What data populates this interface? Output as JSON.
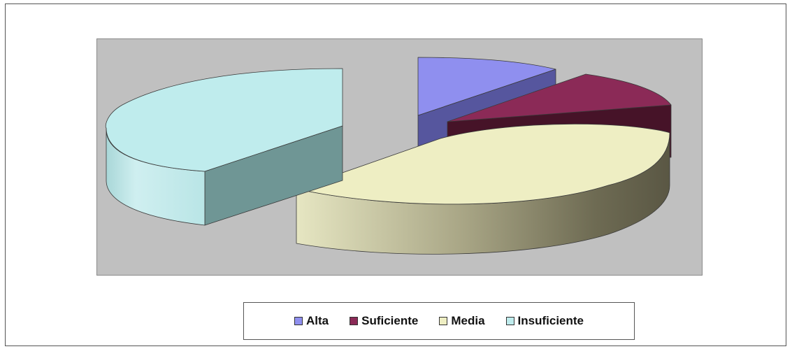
{
  "chart_data": {
    "type": "pie",
    "title": "",
    "categories": [
      "Alta",
      "Suficiente",
      "Media",
      "Insuficiente"
    ],
    "values": [
      12,
      9,
      39,
      40
    ],
    "colors": [
      "#8f8fef",
      "#8b2a57",
      "#eeeec3",
      "#bfeced"
    ],
    "style": "3d-exploded",
    "legend_placement": "bottom"
  },
  "legend": {
    "items": [
      {
        "label": "Alta",
        "color": "#8f8fef"
      },
      {
        "label": "Suficiente",
        "color": "#8b2a57"
      },
      {
        "label": "Media",
        "color": "#eeeec3"
      },
      {
        "label": "Insuficiente",
        "color": "#bfeced"
      }
    ]
  },
  "plot_area_color": "#c0c0c0"
}
